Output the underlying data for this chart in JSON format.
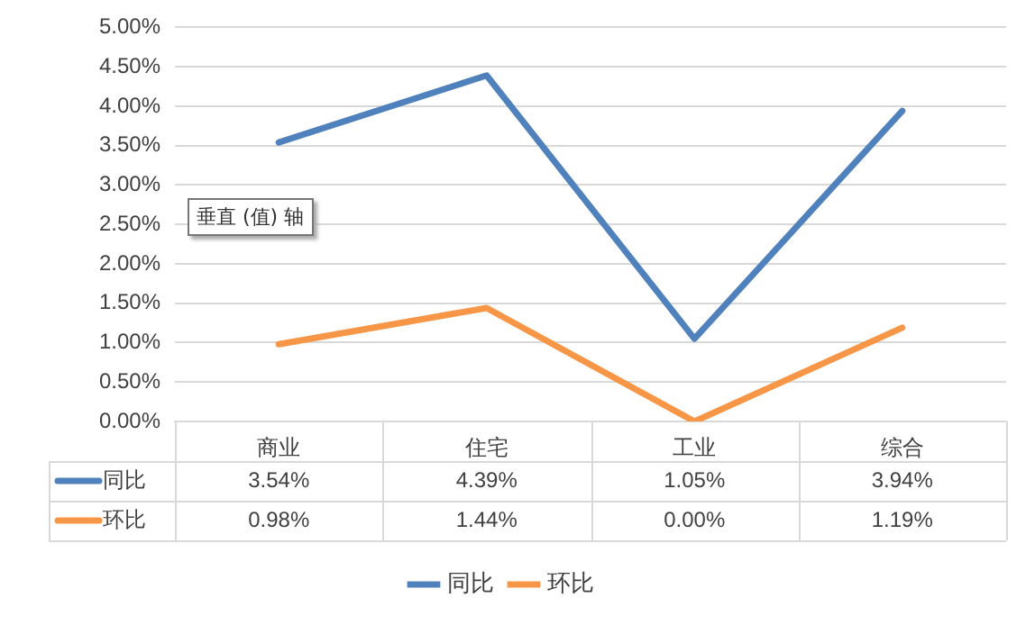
{
  "chart_data": {
    "type": "line",
    "categories": [
      "商业",
      "住宅",
      "工业",
      "综合"
    ],
    "series": [
      {
        "name": "同比",
        "color": "#4f81bd",
        "values": [
          3.54,
          4.39,
          1.05,
          3.94
        ],
        "value_labels": [
          "3.54%",
          "4.39%",
          "1.05%",
          "3.94%"
        ]
      },
      {
        "name": "环比",
        "color": "#f79646",
        "values": [
          0.98,
          1.44,
          0.0,
          1.19
        ],
        "value_labels": [
          "0.98%",
          "1.44%",
          "0.00%",
          "1.19%"
        ]
      }
    ],
    "ylim": [
      0,
      5
    ],
    "yticks": [
      {
        "value": 0,
        "label": "0.00%"
      },
      {
        "value": 0.5,
        "label": "0.50%"
      },
      {
        "value": 1,
        "label": "1.00%"
      },
      {
        "value": 1.5,
        "label": "1.50%"
      },
      {
        "value": 2,
        "label": "2.00%"
      },
      {
        "value": 2.5,
        "label": "2.50%"
      },
      {
        "value": 3,
        "label": "3.00%"
      },
      {
        "value": 3.5,
        "label": "3.50%"
      },
      {
        "value": 4,
        "label": "4.00%"
      },
      {
        "value": 4.5,
        "label": "4.50%"
      },
      {
        "value": 5,
        "label": "5.00%"
      }
    ],
    "grid": "y",
    "legend": "bottom",
    "marker": "none",
    "line_style": "solid",
    "annotations": [
      "垂直 (值) 轴"
    ]
  }
}
